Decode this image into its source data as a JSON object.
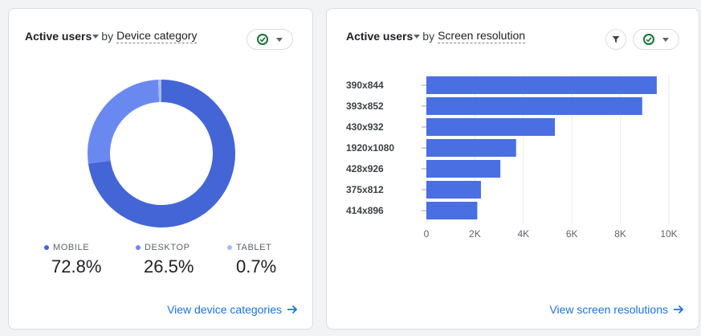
{
  "device_card": {
    "metric": "Active users",
    "by": "by",
    "dimension": "Device category",
    "legend": [
      {
        "label": "MOBILE",
        "value": "72.8%",
        "color": "#4465d6"
      },
      {
        "label": "DESKTOP",
        "value": "26.5%",
        "color": "#6a89f0"
      },
      {
        "label": "TABLET",
        "value": "0.7%",
        "color": "#a6bbf5"
      }
    ],
    "link": "View device categories",
    "icons": {
      "status": "check-circle-icon",
      "dropdown": "chevron-down-icon",
      "link": "arrow-right-icon"
    }
  },
  "resolution_card": {
    "metric": "Active users",
    "by": "by",
    "dimension": "Screen resolution",
    "link": "View screen resolutions",
    "icons": {
      "filter": "filter-icon",
      "status": "check-circle-icon",
      "dropdown": "chevron-down-icon",
      "link": "arrow-right-icon"
    }
  },
  "chart_data": [
    {
      "type": "pie",
      "title": "Active users by Device category",
      "categories": [
        "MOBILE",
        "DESKTOP",
        "TABLET"
      ],
      "values": [
        72.8,
        26.5,
        0.7
      ],
      "colors": [
        "#4465d6",
        "#6a89f0",
        "#a6bbf5"
      ]
    },
    {
      "type": "bar",
      "orientation": "horizontal",
      "title": "Active users by Screen resolution",
      "categories": [
        "390x844",
        "393x852",
        "430x932",
        "1920x1080",
        "428x926",
        "375x812",
        "414x896"
      ],
      "values": [
        9500,
        8900,
        5300,
        3700,
        3050,
        2250,
        2100
      ],
      "xlim": [
        0,
        10000
      ],
      "ticks": [
        0,
        2000,
        4000,
        6000,
        8000,
        10000
      ],
      "tick_labels": [
        "0",
        "2K",
        "4K",
        "6K",
        "8K",
        "10K"
      ],
      "color": "#4a6fe3"
    }
  ]
}
